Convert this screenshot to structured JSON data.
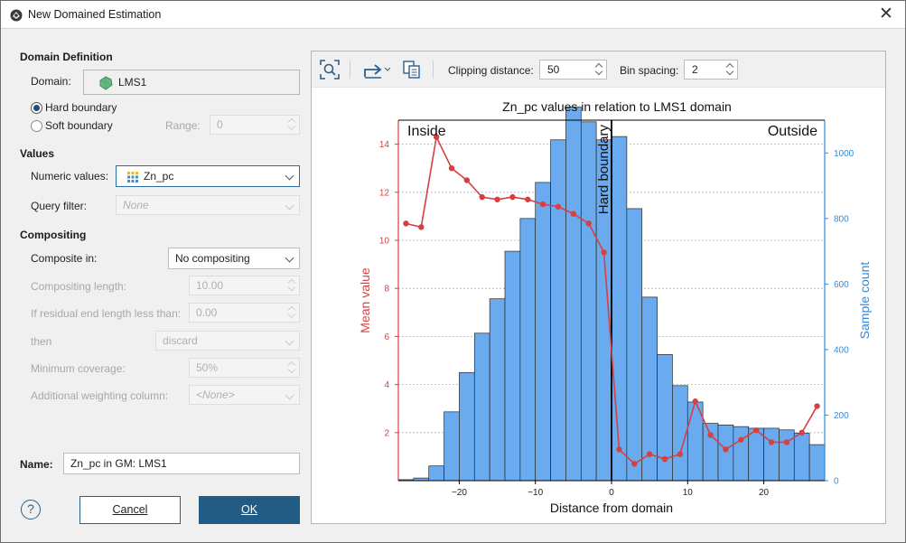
{
  "window": {
    "title": "New Domained Estimation",
    "close_glyph": "✕"
  },
  "domain_definition": {
    "title": "Domain Definition",
    "domain_label": "Domain:",
    "domain_value": "LMS1",
    "hard_boundary_label": "Hard boundary",
    "soft_boundary_label": "Soft boundary",
    "boundary_selected": "hard",
    "range_label": "Range:",
    "range_value": "0"
  },
  "values": {
    "title": "Values",
    "numeric_label": "Numeric values:",
    "numeric_value": "Zn_pc",
    "query_label": "Query filter:",
    "query_value": "None"
  },
  "compositing": {
    "title": "Compositing",
    "composite_in_label": "Composite in:",
    "composite_in_value": "No compositing",
    "length_label": "Compositing length:",
    "length_value": "10.00",
    "residual_label": "If residual end length less than:",
    "residual_value": "0.00",
    "then_label": "then",
    "then_value": "discard",
    "coverage_label": "Minimum coverage:",
    "coverage_value": "50%",
    "weighting_label": "Additional weighting column:",
    "weighting_value": "<None>"
  },
  "name": {
    "label": "Name:",
    "value": "Zn_pc in GM: LMS1"
  },
  "buttons": {
    "help": "?",
    "cancel": "Cancel",
    "ok": "OK"
  },
  "toolbar": {
    "zoom_icon": "zoom-fit-icon",
    "export_icon": "export-icon",
    "copy_icon": "copy-icon",
    "clipping_label": "Clipping distance:",
    "clipping_value": "50",
    "bin_label": "Bin spacing:",
    "bin_value": "2"
  },
  "colors": {
    "mean_line": "#d64040",
    "bars": "#6aaaee",
    "bar_edge": "#2a2a2a",
    "count_axis": "#2e8be0",
    "accent": "#225b83"
  },
  "chart_data": {
    "type": "bar+line",
    "title": "Zn_pc values in relation to LMS1 domain",
    "xlabel": "Distance from domain",
    "ylabel_left": "Mean value",
    "ylabel_right": "Sample count",
    "xlim": [
      -28,
      28
    ],
    "ylim_left": [
      0,
      15
    ],
    "ylim_right": [
      0,
      1100
    ],
    "x_ticks": [
      "−20",
      "−10",
      "0",
      "10",
      "20"
    ],
    "y_left_ticks": [
      "2",
      "4",
      "6",
      "8",
      "10",
      "12",
      "14"
    ],
    "y_right_ticks": [
      "0",
      "200",
      "400",
      "600",
      "800",
      "1000"
    ],
    "region_labels": {
      "inside": "Inside",
      "outside": "Outside",
      "boundary": "Hard boundary"
    },
    "grid": "horizontal dotted",
    "histogram": {
      "name": "Sample count",
      "bin_width": 2,
      "bin_starts": [
        -28,
        -26,
        -24,
        -22,
        -20,
        -18,
        -16,
        -14,
        -12,
        -10,
        -8,
        -6,
        -4,
        -2,
        0,
        2,
        4,
        6,
        8,
        10,
        12,
        14,
        16,
        18,
        20,
        22,
        24,
        26
      ],
      "counts": [
        3,
        8,
        45,
        210,
        330,
        450,
        555,
        700,
        800,
        910,
        1040,
        1140,
        1095,
        1040,
        1050,
        830,
        560,
        385,
        290,
        240,
        175,
        170,
        165,
        160,
        160,
        155,
        145,
        110
      ]
    },
    "mean_series": {
      "name": "Mean value",
      "x": [
        -27,
        -25,
        -23,
        -21,
        -19,
        -17,
        -15,
        -13,
        -11,
        -9,
        -7,
        -5,
        -3,
        -1,
        1,
        3,
        5,
        7,
        9,
        11,
        13,
        15,
        17,
        19,
        21,
        23,
        25,
        27
      ],
      "y": [
        10.7,
        10.55,
        14.3,
        13.0,
        12.5,
        11.8,
        11.7,
        11.8,
        11.7,
        11.5,
        11.4,
        11.1,
        10.7,
        9.5,
        1.3,
        0.7,
        1.1,
        0.9,
        1.1,
        3.3,
        1.9,
        1.3,
        1.7,
        2.1,
        1.6,
        1.6,
        2.0,
        3.1
      ]
    }
  }
}
